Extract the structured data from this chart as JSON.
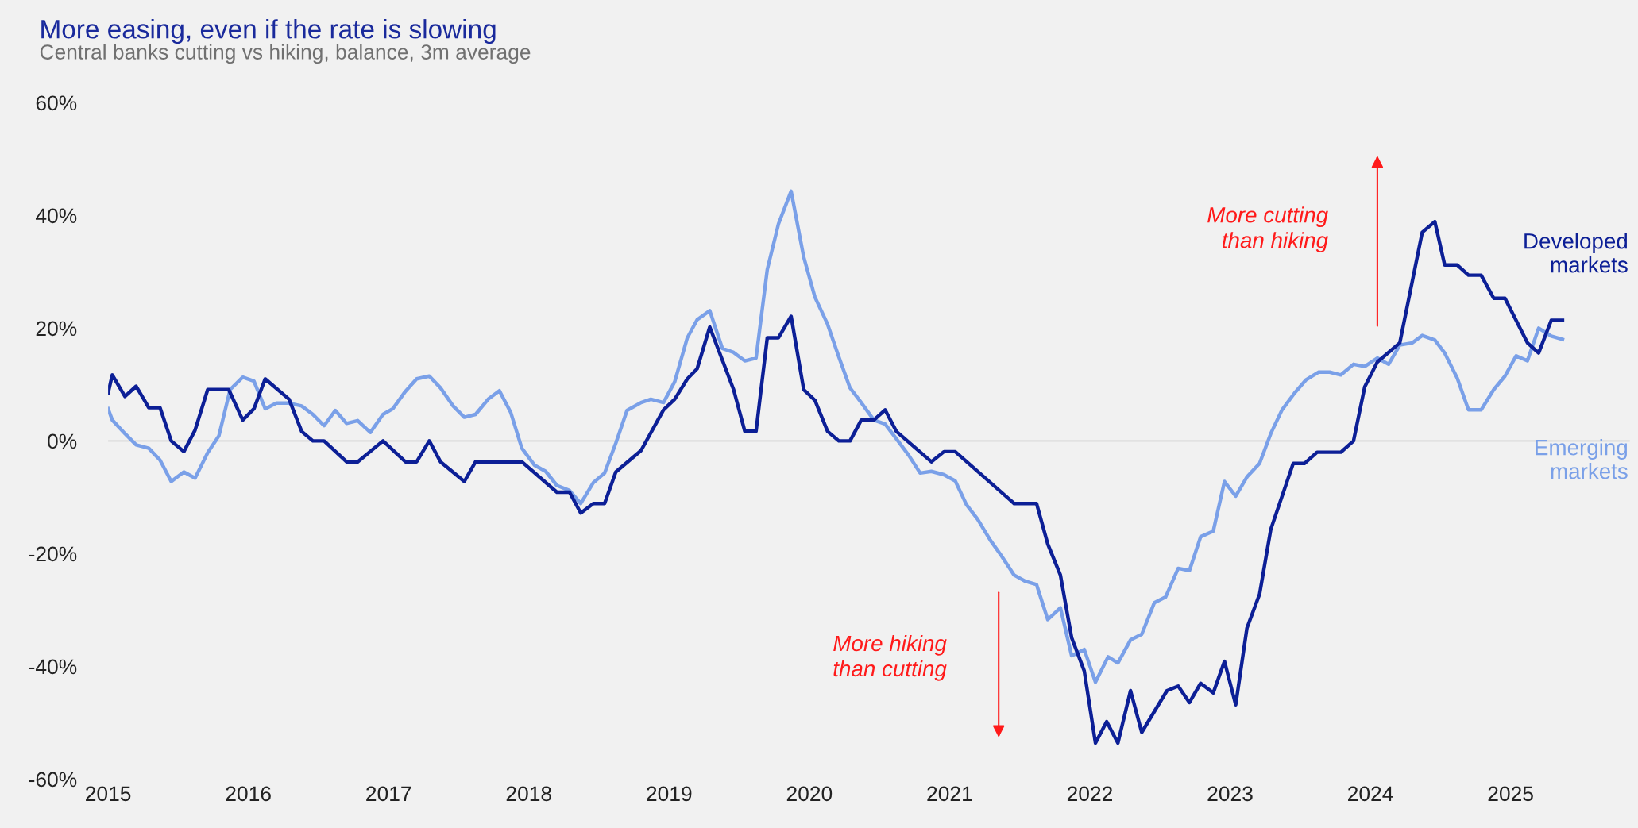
{
  "chart_data": {
    "type": "line",
    "title": "More easing, even if the rate is slowing",
    "subtitle": "Central banks cutting vs hiking, balance, 3m average",
    "xlim": [
      2015,
      2025.85
    ],
    "xticks": [
      2015,
      2016,
      2017,
      2018,
      2019,
      2020,
      2021,
      2022,
      2023,
      2024,
      2025
    ],
    "ylim": [
      -60,
      60
    ],
    "yticks": [
      {
        "value": 60,
        "label": "60%"
      },
      {
        "value": 40,
        "label": "40%"
      },
      {
        "value": 20,
        "label": "20%"
      },
      {
        "value": 0,
        "label": "0%"
      },
      {
        "value": -20,
        "label": "-20%"
      },
      {
        "value": -40,
        "label": "-40%"
      },
      {
        "value": -60,
        "label": "-60%"
      }
    ],
    "grid": false,
    "marker": "none",
    "line_style": "solid",
    "ref_lines": [
      {
        "axis": "y",
        "value": 0,
        "label": null,
        "color": "#dcdcdc"
      }
    ],
    "annotations": [
      "More hiking\nthan cutting",
      "More cutting\nthan hiking"
    ],
    "series": [
      {
        "name": "Emerging\nmarkets",
        "color": "#7aa0e8",
        "x": [
          2015.0,
          2015.03,
          2015.12,
          2015.2,
          2015.29,
          2015.37,
          2015.45,
          2015.54,
          2015.62,
          2015.71,
          2015.79,
          2015.87,
          2015.96,
          2016.04,
          2016.12,
          2016.2,
          2016.29,
          2016.38,
          2016.46,
          2016.54,
          2016.62,
          2016.7,
          2016.78,
          2016.87,
          2016.96,
          2017.03,
          2017.12,
          2017.2,
          2017.29,
          2017.37,
          2017.46,
          2017.54,
          2017.62,
          2017.71,
          2017.79,
          2017.87,
          2017.95,
          2018.04,
          2018.12,
          2018.2,
          2018.29,
          2018.37,
          2018.46,
          2018.54,
          2018.62,
          2018.7,
          2018.8,
          2018.87,
          2018.96,
          2019.04,
          2019.13,
          2019.2,
          2019.29,
          2019.38,
          2019.46,
          2019.54,
          2019.62,
          2019.7,
          2019.78,
          2019.87,
          2019.96,
          2020.04,
          2020.13,
          2020.21,
          2020.29,
          2020.37,
          2020.46,
          2020.54,
          2020.62,
          2020.71,
          2020.79,
          2020.87,
          2020.96,
          2021.04,
          2021.12,
          2021.2,
          2021.29,
          2021.37,
          2021.46,
          2021.54,
          2021.62,
          2021.7,
          2021.79,
          2021.87,
          2021.96,
          2022.04,
          2022.13,
          2022.2,
          2022.29,
          2022.37,
          2022.46,
          2022.54,
          2022.63,
          2022.71,
          2022.79,
          2022.88,
          2022.96,
          2023.04,
          2023.12,
          2023.21,
          2023.29,
          2023.37,
          2023.46,
          2023.54,
          2023.63,
          2023.71,
          2023.79,
          2023.88,
          2023.96,
          2024.05,
          2024.13,
          2024.21,
          2024.3,
          2024.37,
          2024.46,
          2024.53,
          2024.62,
          2024.7,
          2024.79,
          2024.88,
          2024.96,
          2025.04,
          2025.12,
          2025.2,
          2025.29,
          2025.37
        ],
        "values": [
          5.7,
          3.7,
          1.3,
          -0.7,
          -1.3,
          -3.4,
          -7.2,
          -5.5,
          -6.6,
          -2.1,
          0.9,
          9.1,
          11.3,
          10.6,
          5.7,
          6.7,
          6.7,
          6.2,
          4.7,
          2.7,
          5.4,
          3.1,
          3.6,
          1.5,
          4.7,
          5.7,
          8.8,
          11.0,
          11.5,
          9.4,
          6.2,
          4.2,
          4.7,
          7.4,
          8.9,
          5.1,
          -1.3,
          -4.3,
          -5.4,
          -7.9,
          -8.8,
          -11.1,
          -7.4,
          -5.7,
          -0.4,
          5.4,
          6.8,
          7.4,
          6.8,
          10.5,
          18.3,
          21.5,
          23.1,
          16.4,
          15.7,
          14.2,
          14.7,
          30.4,
          38.5,
          44.3,
          32.6,
          25.5,
          20.7,
          14.9,
          9.4,
          6.8,
          3.7,
          3.0,
          0.4,
          -2.6,
          -5.7,
          -5.4,
          -6.0,
          -7.1,
          -11.3,
          -13.9,
          -17.6,
          -20.4,
          -23.8,
          -24.9,
          -25.5,
          -31.7,
          -29.6,
          -38.1,
          -37.0,
          -42.8,
          -38.3,
          -39.4,
          -35.3,
          -34.3,
          -28.7,
          -27.7,
          -22.6,
          -23.0,
          -17.0,
          -16.0,
          -7.2,
          -9.8,
          -6.4,
          -4.0,
          1.3,
          5.5,
          8.5,
          10.8,
          12.2,
          12.2,
          11.7,
          13.6,
          13.2,
          14.7,
          13.6,
          17.0,
          17.4,
          18.7,
          17.9,
          15.6,
          11.1,
          5.5,
          5.5,
          9.1,
          11.5,
          15.1,
          14.2,
          20.0,
          18.6,
          18.0
        ]
      },
      {
        "name": "Developed\nmarkets",
        "color": "#0c1f96",
        "x": [
          2015.0,
          2015.03,
          2015.12,
          2015.2,
          2015.29,
          2015.37,
          2015.45,
          2015.54,
          2015.62,
          2015.71,
          2015.86,
          2015.96,
          2016.04,
          2016.12,
          2016.29,
          2016.38,
          2016.46,
          2016.54,
          2016.7,
          2016.78,
          2016.96,
          2017.12,
          2017.2,
          2017.29,
          2017.37,
          2017.54,
          2017.62,
          2017.95,
          2018.2,
          2018.29,
          2018.37,
          2018.46,
          2018.54,
          2018.62,
          2018.8,
          2018.96,
          2019.04,
          2019.13,
          2019.2,
          2019.29,
          2019.46,
          2019.54,
          2019.62,
          2019.7,
          2019.78,
          2019.87,
          2019.96,
          2020.04,
          2020.13,
          2020.21,
          2020.29,
          2020.37,
          2020.46,
          2020.54,
          2020.62,
          2020.87,
          2020.96,
          2021.04,
          2021.46,
          2021.62,
          2021.7,
          2021.79,
          2021.87,
          2021.96,
          2022.04,
          2022.12,
          2022.2,
          2022.29,
          2022.37,
          2022.55,
          2022.63,
          2022.71,
          2022.79,
          2022.88,
          2022.96,
          2023.04,
          2023.12,
          2023.21,
          2023.29,
          2023.45,
          2023.53,
          2023.62,
          2023.79,
          2023.88,
          2023.96,
          2024.05,
          2024.21,
          2024.37,
          2024.46,
          2024.53,
          2024.62,
          2024.7,
          2024.79,
          2024.88,
          2024.96,
          2025.12,
          2025.2,
          2025.29,
          2025.37
        ],
        "values": [
          8.5,
          11.7,
          7.9,
          9.7,
          5.9,
          5.9,
          0,
          -1.9,
          1.9,
          9.1,
          9.1,
          3.7,
          5.7,
          11.0,
          7.4,
          1.7,
          0,
          0,
          -3.7,
          -3.7,
          0,
          -3.7,
          -3.7,
          0,
          -3.7,
          -7.2,
          -3.7,
          -3.7,
          -9.1,
          -9.1,
          -12.8,
          -11.1,
          -11.1,
          -5.5,
          -1.7,
          5.5,
          7.4,
          11.0,
          12.8,
          20.2,
          9.1,
          1.7,
          1.7,
          18.3,
          18.3,
          22.1,
          9.1,
          7.2,
          1.7,
          0,
          0,
          3.7,
          3.7,
          5.5,
          1.7,
          -3.7,
          -1.9,
          -1.9,
          -11.1,
          -11.1,
          -18.3,
          -23.8,
          -34.9,
          -40.8,
          -53.6,
          -49.8,
          -53.6,
          -44.3,
          -51.7,
          -44.3,
          -43.5,
          -46.4,
          -43.0,
          -44.7,
          -39.1,
          -46.8,
          -33.2,
          -27.2,
          -15.7,
          -4.0,
          -4.0,
          -2.0,
          -2.0,
          0,
          9.6,
          14.0,
          17.4,
          37.0,
          38.9,
          31.2,
          31.2,
          29.4,
          29.4,
          25.3,
          25.3,
          17.4,
          15.6,
          21.4,
          21.4
        ]
      }
    ]
  }
}
